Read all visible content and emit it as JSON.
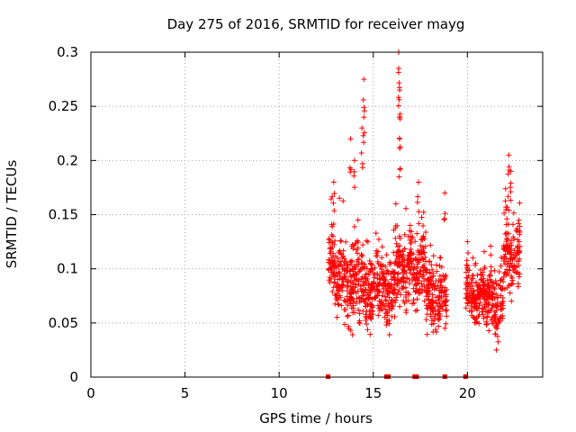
{
  "chart_data": {
    "type": "scatter",
    "title": "Day 275 of 2016, SRMTID for receiver mayg",
    "xlabel": "GPS time / hours",
    "ylabel": "SRMTID / TECUs",
    "xlim": [
      0,
      24
    ],
    "ylim": [
      0,
      0.3
    ],
    "xticks": [
      0,
      5,
      10,
      15,
      20
    ],
    "yticks": [
      0,
      0.05,
      0.1,
      0.15,
      0.2,
      0.25,
      0.3
    ],
    "xtick_labels": [
      "0",
      "5",
      "10",
      "15",
      "20"
    ],
    "ytick_labels": [
      "0",
      "0.05",
      "0.1",
      "0.15",
      "0.2",
      "0.25",
      "0.3"
    ],
    "grid": true,
    "marker": "+",
    "series_color": "#ff0000",
    "zero_markers_x": [
      12.6,
      15.7,
      15.8,
      17.2,
      17.3,
      18.8,
      19.9
    ],
    "clusters": [
      {
        "x_start": 12.6,
        "x_end": 13.3,
        "base": 0.1,
        "amp": 0.045,
        "peaks": [
          {
            "x": 12.9,
            "y": 0.18
          }
        ]
      },
      {
        "x_start": 13.3,
        "x_end": 14.2,
        "base": 0.085,
        "amp": 0.05,
        "peaks": [
          {
            "x": 13.8,
            "y": 0.22
          },
          {
            "x": 14.0,
            "y": 0.2
          }
        ]
      },
      {
        "x_start": 14.2,
        "x_end": 15.3,
        "base": 0.08,
        "amp": 0.045,
        "peaks": [
          {
            "x": 14.5,
            "y": 0.275
          },
          {
            "x": 14.5,
            "y": 0.24
          },
          {
            "x": 14.4,
            "y": 0.23
          }
        ]
      },
      {
        "x_start": 15.3,
        "x_end": 16.2,
        "base": 0.08,
        "amp": 0.045,
        "peaks": [
          {
            "x": 16.2,
            "y": 0.16
          }
        ]
      },
      {
        "x_start": 16.2,
        "x_end": 16.8,
        "base": 0.095,
        "amp": 0.05,
        "peaks": [
          {
            "x": 16.35,
            "y": 0.3
          },
          {
            "x": 16.35,
            "y": 0.285
          },
          {
            "x": 16.4,
            "y": 0.265
          },
          {
            "x": 16.4,
            "y": 0.24
          },
          {
            "x": 16.4,
            "y": 0.22
          }
        ]
      },
      {
        "x_start": 16.8,
        "x_end": 17.8,
        "base": 0.1,
        "amp": 0.045,
        "peaks": [
          {
            "x": 17.4,
            "y": 0.18
          }
        ]
      },
      {
        "x_start": 17.8,
        "x_end": 18.9,
        "base": 0.07,
        "amp": 0.04,
        "peaks": [
          {
            "x": 18.8,
            "y": 0.17
          }
        ]
      },
      {
        "x_start": 19.9,
        "x_end": 21.0,
        "base": 0.075,
        "amp": 0.035,
        "peaks": [
          {
            "x": 20.0,
            "y": 0.125
          }
        ]
      },
      {
        "x_start": 21.0,
        "x_end": 21.9,
        "base": 0.065,
        "amp": 0.04,
        "peaks": []
      },
      {
        "x_start": 21.9,
        "x_end": 22.8,
        "base": 0.11,
        "amp": 0.05,
        "peaks": [
          {
            "x": 22.2,
            "y": 0.205
          },
          {
            "x": 22.3,
            "y": 0.19
          }
        ]
      }
    ]
  }
}
